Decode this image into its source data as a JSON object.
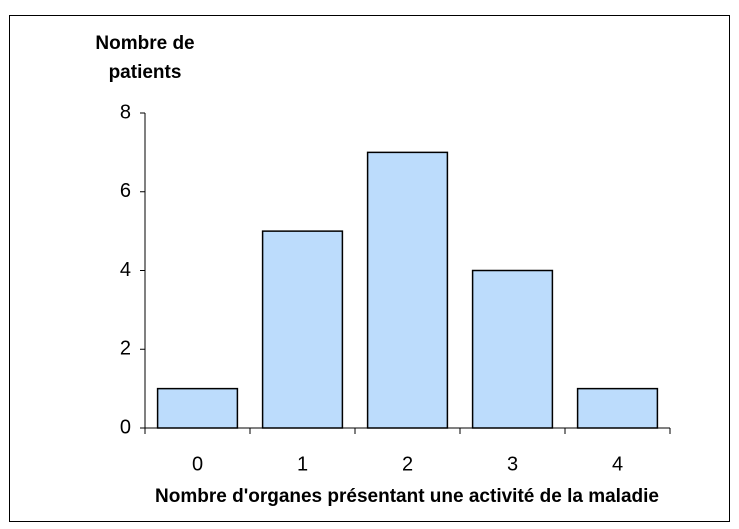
{
  "chart_data": {
    "type": "bar",
    "y_label": [
      "Nombre de",
      "patients"
    ],
    "x_label": "Nombre d'organes présentant une activité de la maladie",
    "categories": [
      "0",
      "1",
      "2",
      "3",
      "4"
    ],
    "values": [
      1,
      5,
      7,
      4,
      1
    ],
    "color": "#bcdcfc",
    "ylim": [
      0,
      8
    ],
    "yticks": [
      0,
      2,
      4,
      6,
      8
    ],
    "grid": false
  }
}
